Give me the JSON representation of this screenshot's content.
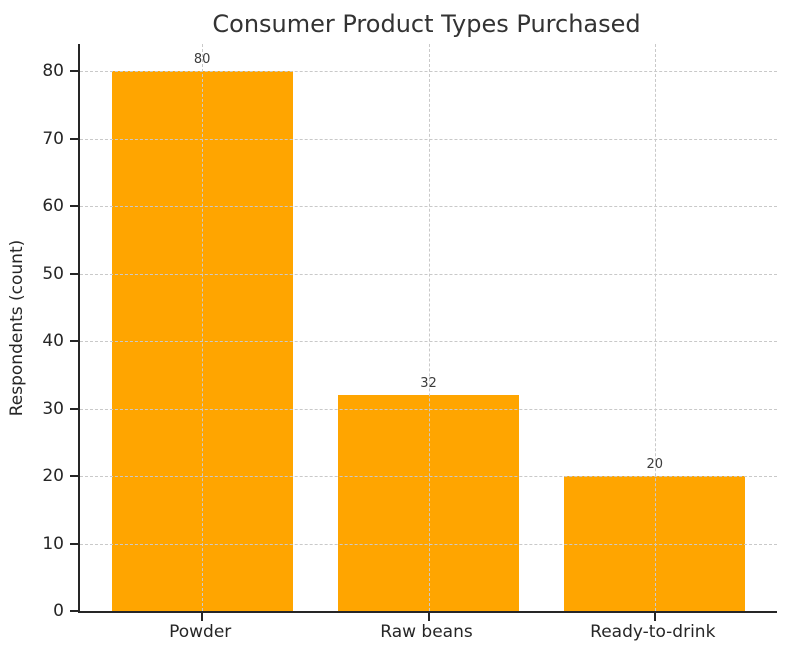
{
  "chart_data": {
    "type": "bar",
    "title": "Consumer Product Types Purchased",
    "ylabel": "Respondents (count)",
    "xlabel": "",
    "categories": [
      "Powder",
      "Raw beans",
      "Ready-to-drink"
    ],
    "values": [
      80,
      32,
      20
    ],
    "bar_value_labels": [
      "80",
      "32",
      "20"
    ],
    "yticks": [
      0,
      10,
      20,
      30,
      40,
      50,
      60,
      70,
      80
    ],
    "ylim": [
      0,
      84
    ],
    "bar_width_fraction": 0.8,
    "bar_color": "#FFA500",
    "axis_color": "#262626",
    "title_color": "#333333",
    "value_label_color": "#3d3d3d",
    "grid": {
      "style": "dashed",
      "color": "#C9C9C9",
      "horizontal": true,
      "vertical": true,
      "above_bars": true
    },
    "legend": null
  }
}
